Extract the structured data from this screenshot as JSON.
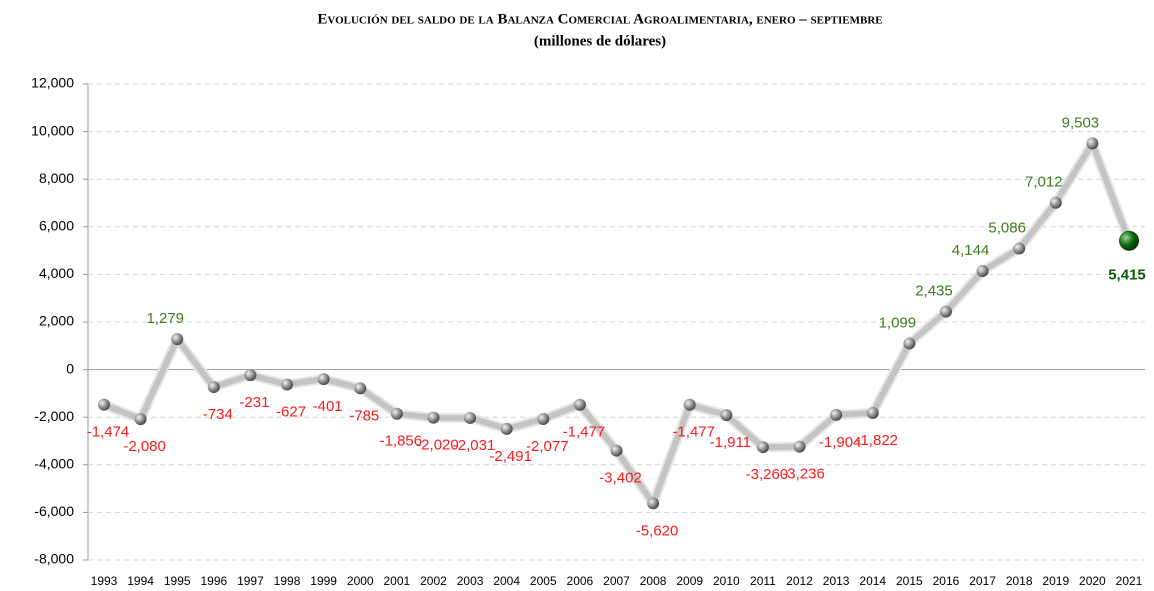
{
  "chart_data": {
    "type": "line",
    "title": "Evolución del saldo de la Balanza Comercial Agroalimentaria, enero – septiembre",
    "subtitle": "(millones de dólares)",
    "categories": [
      "1993",
      "1994",
      "1995",
      "1996",
      "1997",
      "1998",
      "1999",
      "2000",
      "2001",
      "2002",
      "2003",
      "2004",
      "2005",
      "2006",
      "2007",
      "2008",
      "2009",
      "2010",
      "2011",
      "2012",
      "2013",
      "2014",
      "2015",
      "2016",
      "2017",
      "2018",
      "2019",
      "2020",
      "2021"
    ],
    "values": [
      -1474,
      -2080,
      1279,
      -734,
      -231,
      -627,
      -401,
      -785,
      -1856,
      -2020,
      -2031,
      -2491,
      -2077,
      -1477,
      -3402,
      -5620,
      -1477,
      -1911,
      -3260,
      -3236,
      -1904,
      -1822,
      1099,
      2435,
      4144,
      5086,
      7012,
      9503,
      5415
    ],
    "value_labels": [
      "-1,474",
      "-2,080",
      "1,279",
      "-734",
      "-231",
      "-627",
      "-401",
      "-785",
      "-1,856",
      "-2,020",
      "-2,031",
      "-2,491",
      "-2,077",
      "-1,477",
      "-3,402",
      "-5,620",
      "-1,477",
      "-1,911",
      "-3,260",
      "-3,236",
      "-1,904",
      "-1,822",
      "1,099",
      "2,435",
      "4,144",
      "5,086",
      "7,012",
      "9,503",
      "5,415"
    ],
    "ylim": [
      -8000,
      12000
    ],
    "yticks": [
      {
        "value": -8000,
        "label": "-8,000"
      },
      {
        "value": -6000,
        "label": "-6,000"
      },
      {
        "value": -4000,
        "label": "-4,000"
      },
      {
        "value": -2000,
        "label": "-2,000"
      },
      0,
      {
        "value": 2000,
        "label": "2,000"
      },
      {
        "value": 4000,
        "label": "4,000"
      },
      {
        "value": 6000,
        "label": "6,000"
      },
      {
        "value": 8000,
        "label": "8,000"
      },
      {
        "value": 10000,
        "label": "10,000"
      },
      {
        "value": 12000,
        "label": "12,000"
      }
    ],
    "grid": true,
    "color": "#c4c4c4",
    "negative_color": "#ff1a1a",
    "positive_color": "#3c7d1e",
    "highlight_color": "#0b5e0b"
  }
}
